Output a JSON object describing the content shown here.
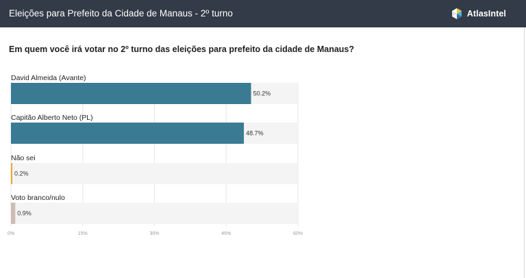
{
  "header": {
    "title": "Eleições para Prefeito da Cidade de Manaus - 2º turno"
  },
  "brand": {
    "name": "AtlasIntel",
    "icon": "atlasintel-logo-icon"
  },
  "chart_data": {
    "type": "bar",
    "orientation": "horizontal",
    "title": "Em quem você irá votar no 2º turno das eleições para prefeito da cidade de Manaus?",
    "categories": [
      "David Almeida (Avante)",
      "Capitão Alberto Neto (PL)",
      "Não sei",
      "Voto branco/nulo"
    ],
    "values": [
      50.2,
      48.7,
      0.2,
      0.9
    ],
    "value_labels": [
      "50.2%",
      "48.7%",
      "0.2%",
      "0.9%"
    ],
    "colors": [
      "#3a7b93",
      "#3a7b93",
      "#f0a52a",
      "#cdbcb3"
    ],
    "track_color": "#f4f4f4",
    "xlim": [
      0,
      60
    ],
    "xticks": [
      0,
      15,
      30,
      45,
      60
    ],
    "xtick_labels": [
      "0%",
      "15%",
      "30%",
      "45%",
      "60%"
    ],
    "grid": true
  }
}
